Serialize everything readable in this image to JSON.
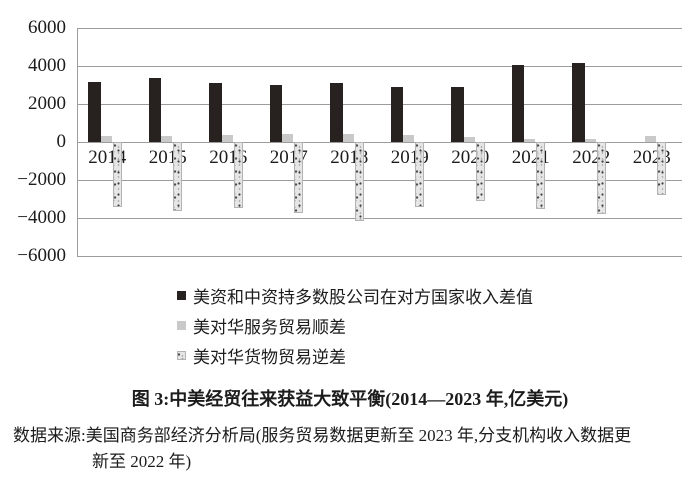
{
  "figure": {
    "title": "图 3:中美经贸往来获益大致平衡(2014—2023 年,亿美元)",
    "source_line1": "数据来源:美国商务部经济分析局(服务贸易数据更新至 2023 年,分支机构收入数据更",
    "source_line2": "新至 2022 年)"
  },
  "colors": {
    "bar_black": "#272120",
    "bar_gray": "#c9c9c9",
    "bar_pattern_bg": "#e3e3e3",
    "gridline": "#9c9c9c",
    "text": "#1c1c1c"
  },
  "chart_data": {
    "type": "bar",
    "categories": [
      "2014",
      "2015",
      "2016",
      "2017",
      "2018",
      "2019",
      "2020",
      "2021",
      "2022",
      "2023"
    ],
    "series": [
      {
        "key": "income_diff",
        "name": "美资和中资持多数股公司在对方国家收入差值",
        "style": "solid",
        "color": "#272120",
        "values": [
          3150,
          3350,
          3100,
          3000,
          3100,
          2870,
          2900,
          4050,
          4180,
          null
        ]
      },
      {
        "key": "services_surplus",
        "name": "美对华服务贸易顺差",
        "style": "solid",
        "color": "#c9c9c9",
        "values": [
          280,
          330,
          370,
          400,
          410,
          360,
          250,
          150,
          130,
          280
        ]
      },
      {
        "key": "goods_deficit",
        "name": "美对华货物贸易逆差",
        "style": "speckled",
        "color": "#e3e3e3",
        "values": [
          -3440,
          -3670,
          -3470,
          -3750,
          -4180,
          -3420,
          -3100,
          -3530,
          -3820,
          -2790
        ]
      }
    ],
    "ylim": [
      -6000,
      6000
    ],
    "ytick_values": [
      6000,
      4000,
      2000,
      0,
      -2000,
      -4000,
      -6000
    ],
    "ytick_labels": [
      "6000",
      "4000",
      "2000",
      "0",
      "−2000",
      "−4000",
      "−6000"
    ],
    "grid": true,
    "legend_position": "below-left"
  }
}
